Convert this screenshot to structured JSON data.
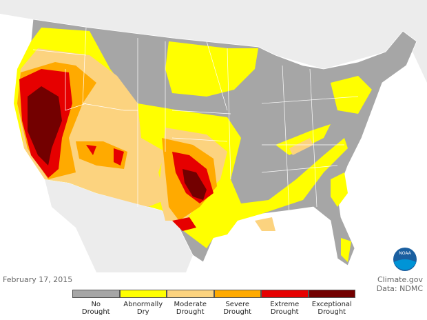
{
  "date": "February 17, 2015",
  "credit": "Climate.gov",
  "source": "Data: NDMC",
  "logo": "NOAA",
  "legend": [
    {
      "label": "No Drought",
      "color": "#a6a6a6"
    },
    {
      "label": "Abnormally Dry",
      "color": "#ffff00"
    },
    {
      "label": "Moderate Drought",
      "color": "#fcd37f"
    },
    {
      "label": "Severe Drought",
      "color": "#ffaa00"
    },
    {
      "label": "Extreme Drought",
      "color": "#e60000"
    },
    {
      "label": "Exceptional Drought",
      "color": "#730000"
    }
  ]
}
